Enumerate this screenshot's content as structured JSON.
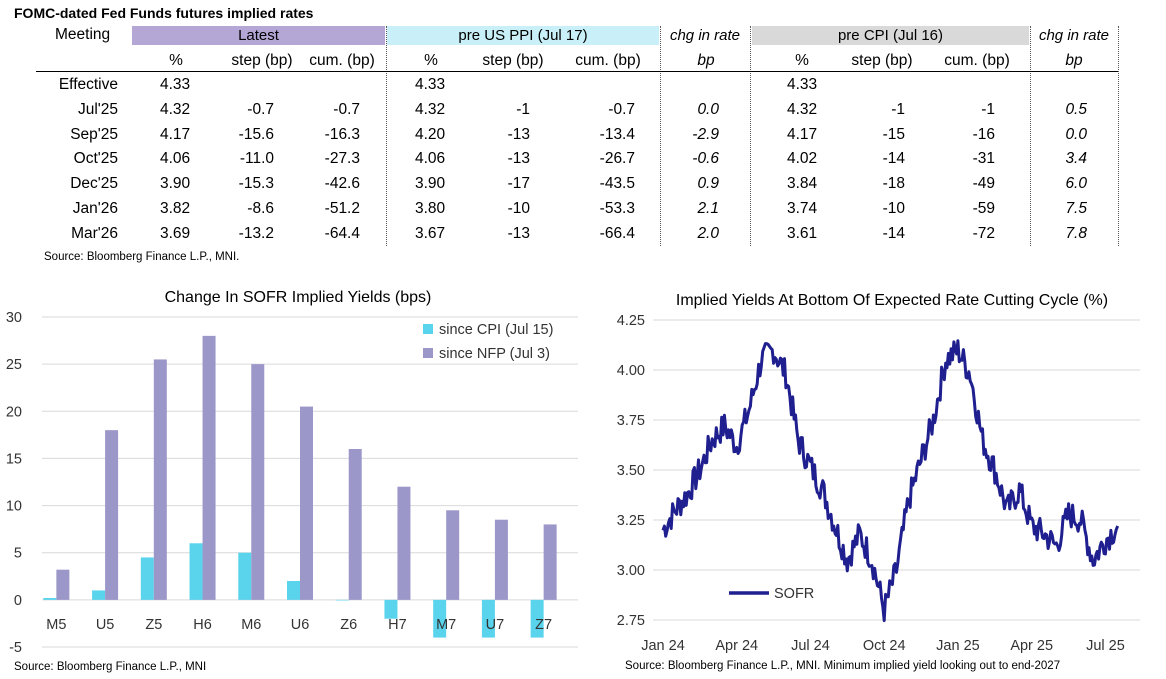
{
  "table": {
    "title": "FOMC-dated Fed Funds futures implied rates",
    "meeting_label": "Meeting",
    "groups": {
      "latest": "Latest",
      "pre_ppi": "pre US PPI (Jul 17)",
      "chg1": "chg in rate",
      "pre_cpi": "pre CPI (Jul 16)",
      "chg2": "chg in rate"
    },
    "sub": {
      "pct": "%",
      "step": "step (bp)",
      "cum": "cum. (bp)",
      "bp": "bp"
    },
    "rows": [
      {
        "m": "Effective",
        "l": [
          "4.33",
          "",
          ""
        ],
        "p": [
          "4.33",
          "",
          ""
        ],
        "c1": "",
        "q": [
          "4.33",
          "",
          ""
        ],
        "c2": ""
      },
      {
        "m": "Jul'25",
        "l": [
          "4.32",
          "-0.7",
          "-0.7"
        ],
        "p": [
          "4.32",
          "-1",
          "-0.7"
        ],
        "c1": "0.0",
        "q": [
          "4.32",
          "-1",
          "-1"
        ],
        "c2": "0.5"
      },
      {
        "m": "Sep'25",
        "l": [
          "4.17",
          "-15.6",
          "-16.3"
        ],
        "p": [
          "4.20",
          "-13",
          "-13.4"
        ],
        "c1": "-2.9",
        "q": [
          "4.17",
          "-15",
          "-16"
        ],
        "c2": "0.0"
      },
      {
        "m": "Oct'25",
        "l": [
          "4.06",
          "-11.0",
          "-27.3"
        ],
        "p": [
          "4.06",
          "-13",
          "-26.7"
        ],
        "c1": "-0.6",
        "q": [
          "4.02",
          "-14",
          "-31"
        ],
        "c2": "3.4"
      },
      {
        "m": "Dec'25",
        "l": [
          "3.90",
          "-15.3",
          "-42.6"
        ],
        "p": [
          "3.90",
          "-17",
          "-43.5"
        ],
        "c1": "0.9",
        "q": [
          "3.84",
          "-18",
          "-49"
        ],
        "c2": "6.0"
      },
      {
        "m": "Jan'26",
        "l": [
          "3.82",
          "-8.6",
          "-51.2"
        ],
        "p": [
          "3.80",
          "-10",
          "-53.3"
        ],
        "c1": "2.1",
        "q": [
          "3.74",
          "-10",
          "-59"
        ],
        "c2": "7.5"
      },
      {
        "m": "Mar'26",
        "l": [
          "3.69",
          "-13.2",
          "-64.4"
        ],
        "p": [
          "3.67",
          "-13",
          "-66.4"
        ],
        "c1": "2.0",
        "q": [
          "3.61",
          "-14",
          "-72"
        ],
        "c2": "7.8"
      }
    ],
    "source": "Source: Bloomberg Finance L.P., MNI."
  },
  "colors": {
    "latest_band": "#b4a7d6",
    "ppi_band": "#c9f0f8",
    "cpi_band": "#d9d9d9",
    "cpi_bar": "#5ad3ec",
    "nfp_bar": "#9b97c9",
    "sofr_line": "#1f1f8f"
  },
  "chart_data": [
    {
      "type": "bar",
      "title": "Change In SOFR Implied Yields (bps)",
      "categories": [
        "M5",
        "U5",
        "Z5",
        "H6",
        "M6",
        "U6",
        "Z6",
        "H7",
        "M7",
        "U7",
        "Z7"
      ],
      "series": [
        {
          "name": "since CPI (Jul 15)",
          "values": [
            0.2,
            1.0,
            4.5,
            6.0,
            5.0,
            2.0,
            0.0,
            -2.0,
            -4.0,
            -4.0,
            -4.0
          ]
        },
        {
          "name": "since NFP (Jul 3)",
          "values": [
            3.2,
            18.0,
            25.5,
            28.0,
            25.0,
            20.5,
            16.0,
            12.0,
            9.5,
            8.5,
            8.0
          ]
        }
      ],
      "ylim": [
        -5,
        30
      ],
      "yticks": [
        "-5",
        "0",
        "5",
        "10",
        "15",
        "20",
        "25",
        "30"
      ],
      "source": "Source: Bloomberg Finance L.P., MNI"
    },
    {
      "type": "line",
      "title": "Implied Yields At Bottom Of Expected Rate Cutting Cycle (%)",
      "series_name": "SOFR",
      "xlabels": [
        "Jan 24",
        "Apr 24",
        "Jul 24",
        "Oct 24",
        "Jan 25",
        "Apr 25",
        "Jul 25"
      ],
      "ylim": [
        2.75,
        4.25
      ],
      "yticks": [
        "2.75",
        "3.00",
        "3.25",
        "3.50",
        "3.75",
        "4.00",
        "4.25"
      ],
      "x_months": [
        0,
        0.5,
        1,
        1.5,
        2,
        2.5,
        3,
        3.5,
        4,
        4.5,
        5,
        5.5,
        6,
        6.5,
        7,
        7.5,
        8,
        8.5,
        9,
        9.5,
        10,
        10.5,
        11,
        11.5,
        12,
        12.5,
        13,
        13.5,
        14,
        14.5,
        15,
        15.5,
        16,
        16.5,
        17,
        17.5,
        18,
        18.5
      ],
      "values": [
        3.2,
        3.3,
        3.38,
        3.5,
        3.65,
        3.72,
        3.62,
        3.8,
        4.05,
        4.1,
        3.98,
        3.65,
        3.52,
        3.4,
        3.22,
        3.05,
        3.18,
        3.05,
        2.8,
        3.0,
        3.35,
        3.55,
        3.75,
        4.05,
        4.1,
        3.98,
        3.65,
        3.5,
        3.3,
        3.4,
        3.22,
        3.18,
        3.12,
        3.28,
        3.25,
        3.05,
        3.15,
        3.22
      ],
      "source": "Source: Bloomberg Finance L.P., MNI. Minimum implied yield looking out to end-2027"
    }
  ]
}
